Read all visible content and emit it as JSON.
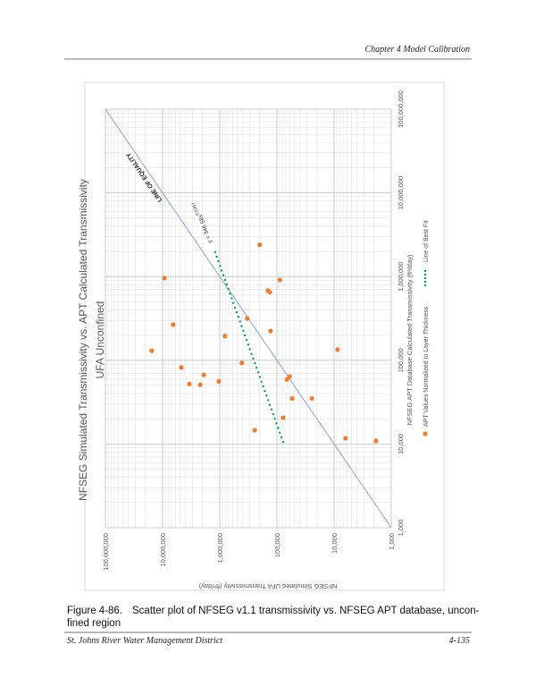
{
  "header": {
    "title": "Chapter 4 Model Calibration"
  },
  "chart_data": {
    "type": "scatter",
    "title": "NFSEG Simulated Transmissivity vs. APT Calculated Transmissivity",
    "subtitle": "UFA Unconfined",
    "x_label": "NFSEG APT Database Calculated Transmissivity (ft²/day)",
    "y_label": "NFSEG Simulated UFA Transmissivity (ft²/day)",
    "log_x": true,
    "log_y": true,
    "grid": true,
    "minor_grid": true,
    "xlim": [
      1000,
      100000000
    ],
    "ylim": [
      1000,
      100000000
    ],
    "xticks": [
      {
        "value": 1000,
        "label": "1,000"
      },
      {
        "value": 10000,
        "label": "10,000"
      },
      {
        "value": 100000,
        "label": "100,000"
      },
      {
        "value": 1000000,
        "label": "1,000,000"
      },
      {
        "value": 10000000,
        "label": "10,000,000"
      },
      {
        "value": 100000000,
        "label": "100,000,000"
      }
    ],
    "yticks": [
      {
        "value": 1000,
        "label": "1,000"
      },
      {
        "value": 10000,
        "label": "10,000"
      },
      {
        "value": 100000,
        "label": "100,000"
      },
      {
        "value": 1000000,
        "label": "1,000,000"
      },
      {
        "value": 10000000,
        "label": "10,000,000"
      },
      {
        "value": 100000000,
        "label": "100,000,000"
      }
    ],
    "series": [
      {
        "name": "APT Values Normalized to Layer Thickness",
        "color": "#ed7d31",
        "x": [
          130000,
          960000,
          267000,
          82000,
          52000,
          51000,
          67000,
          56000,
          195000,
          93000,
          316000,
          14600,
          2400000,
          680000,
          650000,
          224000,
          910000,
          20600,
          59000,
          64000,
          35000,
          35000,
          134000,
          11700,
          10900
        ],
        "values": [
          15500000,
          9300000,
          6500000,
          4700000,
          3400000,
          2200000,
          1900000,
          1040000,
          810000,
          410000,
          330000,
          245000,
          200000,
          144000,
          133000,
          129000,
          89000,
          78000,
          67000,
          60000,
          54000,
          24500,
          8700,
          6300,
          1850
        ]
      }
    ],
    "fit": {
      "name": "Line of Best Fit",
      "color": "#00a050",
      "equation": "y = 346.58x",
      "exponent": "0.5307",
      "x": [
        10600,
        2200000
      ],
      "values": [
        78000,
        1280000
      ]
    },
    "equality_line": {
      "label": "LINE OF EQUALITY",
      "color": "#8ea4d2",
      "x": [
        1000,
        100000000
      ],
      "values": [
        1000,
        100000000
      ]
    }
  },
  "caption": {
    "number": "Figure 4-86.",
    "lines": [
      "Scatter plot of NFSEG v1.1 transmissivity vs. NFSEG APT database, uncon-",
      "fined region"
    ]
  },
  "footer": {
    "left": "St. Johns River Water Management District",
    "right": "4-135"
  }
}
